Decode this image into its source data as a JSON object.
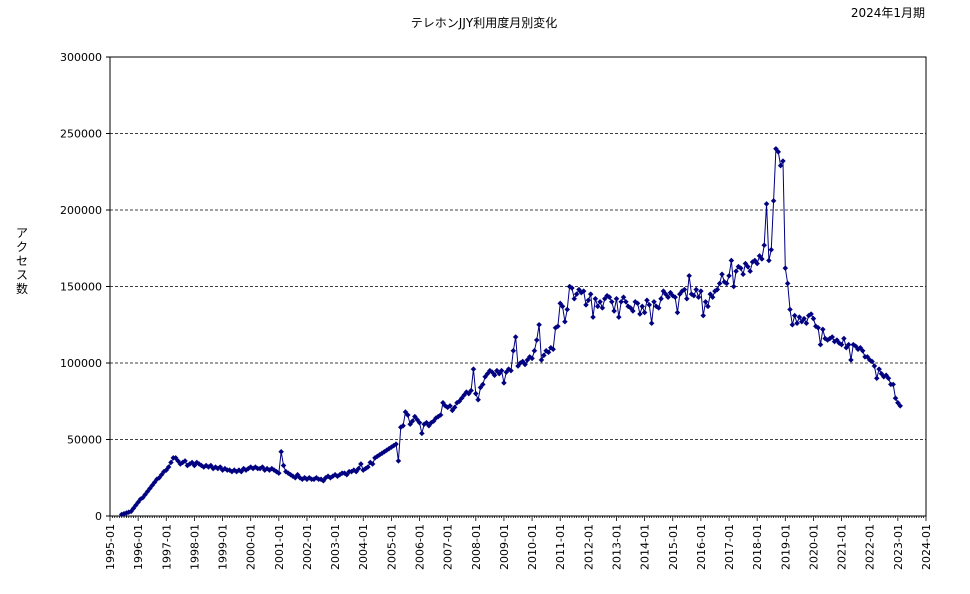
{
  "chart_data": {
    "type": "line",
    "title": "テレホンJJY利用度月別変化",
    "subtitle": "2024年1月期",
    "ylabel": "アクセス数",
    "xlabel": "",
    "ylim": [
      0,
      300000
    ],
    "y_ticks": [
      "0",
      "50000",
      "100000",
      "150000",
      "200000",
      "250000",
      "300000"
    ],
    "y_tick_values": [
      0,
      50000,
      100000,
      150000,
      200000,
      250000,
      300000
    ],
    "x_ticks": [
      "1995-01",
      "1996-01",
      "1997-01",
      "1998-01",
      "1999-01",
      "2000-01",
      "2001-01",
      "2002-01",
      "2003-01",
      "2004-01",
      "2005-01",
      "2006-01",
      "2007-01",
      "2008-01",
      "2009-01",
      "2010-01",
      "2011-01",
      "2012-01",
      "2013-01",
      "2014-01",
      "2015-01",
      "2016-01",
      "2017-01",
      "2018-01",
      "2019-01",
      "2020-01",
      "2021-01",
      "2022-01",
      "2023-01",
      "2024-01"
    ],
    "x_range": [
      "1995-01",
      "2024-01"
    ],
    "grid": "horizontal dashed",
    "legend": "none",
    "series_color": "#000080",
    "series": [
      {
        "x_start": "1995-06",
        "values": [
          1000,
          1500,
          2000,
          2500,
          3000,
          5000,
          7000,
          9000,
          11000,
          12000,
          14000,
          16000,
          18000,
          20000,
          22000,
          24000,
          25000,
          27000,
          29000,
          30000,
          32000,
          35000,
          38000,
          38000,
          36000,
          34000,
          35000,
          36000,
          33000,
          34000,
          35000,
          33000,
          35000,
          34000,
          33000,
          32000,
          33000,
          32000,
          33000,
          31000,
          32000,
          31000,
          32000,
          30000,
          31000,
          30000,
          30000,
          29000,
          30000,
          29000,
          30000,
          29000,
          31000,
          30000,
          31000,
          32000,
          31000,
          32000,
          31000,
          31000,
          32000,
          30000,
          31000,
          30000,
          31000,
          30000,
          29000,
          28000,
          42000,
          33000,
          29000,
          28000,
          27000,
          26000,
          25000,
          27000,
          25000,
          24000,
          25000,
          24000,
          25000,
          24000,
          24000,
          25000,
          24000,
          24000,
          23000,
          25000,
          26000,
          25000,
          26000,
          27000,
          26000,
          27000,
          28000,
          28000,
          27000,
          29000,
          29000,
          30000,
          29000,
          31000,
          34000,
          30000,
          31000,
          32000,
          35000,
          34000,
          38000,
          39000,
          40000,
          41000,
          42000,
          43000,
          44000,
          45000,
          46000,
          47000,
          36000,
          58000,
          59000,
          68000,
          66000,
          60000,
          62000,
          65000,
          63000,
          61000,
          54000,
          60000,
          61000,
          59000,
          61000,
          62000,
          64000,
          65000,
          66000,
          74000,
          72000,
          71000,
          72000,
          69000,
          71000,
          74000,
          75000,
          77000,
          79000,
          81000,
          80000,
          82000,
          96000,
          80000,
          76000,
          84000,
          86000,
          91000,
          93000,
          95000,
          94000,
          92000,
          95000,
          93000,
          95000,
          87000,
          94000,
          96000,
          95000,
          108000,
          117000,
          98000,
          100000,
          101000,
          99000,
          102000,
          104000,
          103000,
          108000,
          115000,
          125000,
          102000,
          105000,
          108000,
          107000,
          110000,
          109000,
          123000,
          124000,
          139000,
          137000,
          127000,
          135000,
          150000,
          149000,
          142000,
          145000,
          148000,
          146000,
          147000,
          138000,
          141000,
          145000,
          130000,
          142000,
          137000,
          140000,
          136000,
          142000,
          144000,
          143000,
          140000,
          134000,
          142000,
          130000,
          140000,
          143000,
          140000,
          137000,
          136000,
          134000,
          140000,
          139000,
          132000,
          137000,
          133000,
          141000,
          138000,
          126000,
          140000,
          137000,
          136000,
          142000,
          147000,
          145000,
          143000,
          146000,
          144000,
          143000,
          133000,
          145000,
          147000,
          148000,
          142000,
          157000,
          145000,
          144000,
          148000,
          143000,
          147000,
          131000,
          140000,
          137000,
          145000,
          143000,
          147000,
          148000,
          152000,
          158000,
          153000,
          152000,
          157000,
          167000,
          150000,
          160000,
          163000,
          162000,
          158000,
          165000,
          163000,
          160000,
          166000,
          167000,
          165000,
          170000,
          168000,
          177000,
          204000,
          167000,
          174000,
          206000,
          240000,
          238000,
          229000,
          232000,
          162000,
          152000,
          135000,
          125000,
          131000,
          126000,
          130000,
          127000,
          129000,
          126000,
          131000,
          132000,
          129000,
          124000,
          123000,
          112000,
          122000,
          116000,
          115000,
          116000,
          117000,
          114000,
          115000,
          113000,
          112000,
          116000,
          110000,
          112000,
          102000,
          112000,
          111000,
          109000,
          110000,
          108000,
          104000,
          104000,
          102000,
          101000,
          98000,
          90000,
          96000,
          93000,
          91000,
          92000,
          90000,
          86000,
          86000,
          77000,
          74000,
          72000
        ]
      }
    ]
  }
}
